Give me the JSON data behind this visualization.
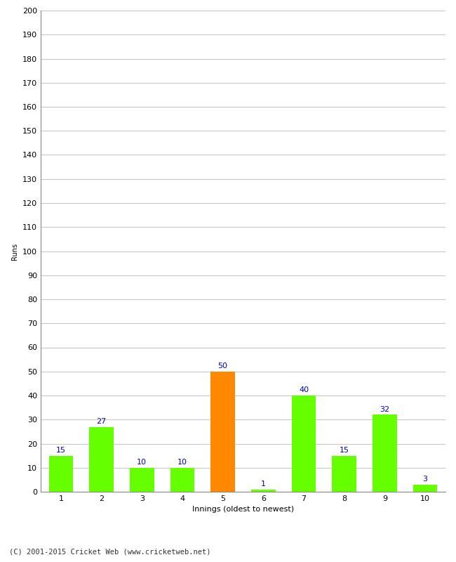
{
  "xlabel": "Innings (oldest to newest)",
  "ylabel": "Runs",
  "categories": [
    "1",
    "2",
    "3",
    "4",
    "5",
    "6",
    "7",
    "8",
    "9",
    "10"
  ],
  "values": [
    15,
    27,
    10,
    10,
    50,
    1,
    40,
    15,
    32,
    3
  ],
  "bar_colors": [
    "#66ff00",
    "#66ff00",
    "#66ff00",
    "#66ff00",
    "#ff8800",
    "#66ff00",
    "#66ff00",
    "#66ff00",
    "#66ff00",
    "#66ff00"
  ],
  "label_color": "#0000cc",
  "ylim": [
    0,
    200
  ],
  "yticks": [
    0,
    10,
    20,
    30,
    40,
    50,
    60,
    70,
    80,
    90,
    100,
    110,
    120,
    130,
    140,
    150,
    160,
    170,
    180,
    190,
    200
  ],
  "background_color": "#ffffff",
  "grid_color": "#c8c8c8",
  "footer": "(C) 2001-2015 Cricket Web (www.cricketweb.net)",
  "bar_width": 0.6,
  "label_fontsize": 8,
  "axis_label_fontsize": 8,
  "tick_fontsize": 8,
  "ylabel_fontsize": 7
}
